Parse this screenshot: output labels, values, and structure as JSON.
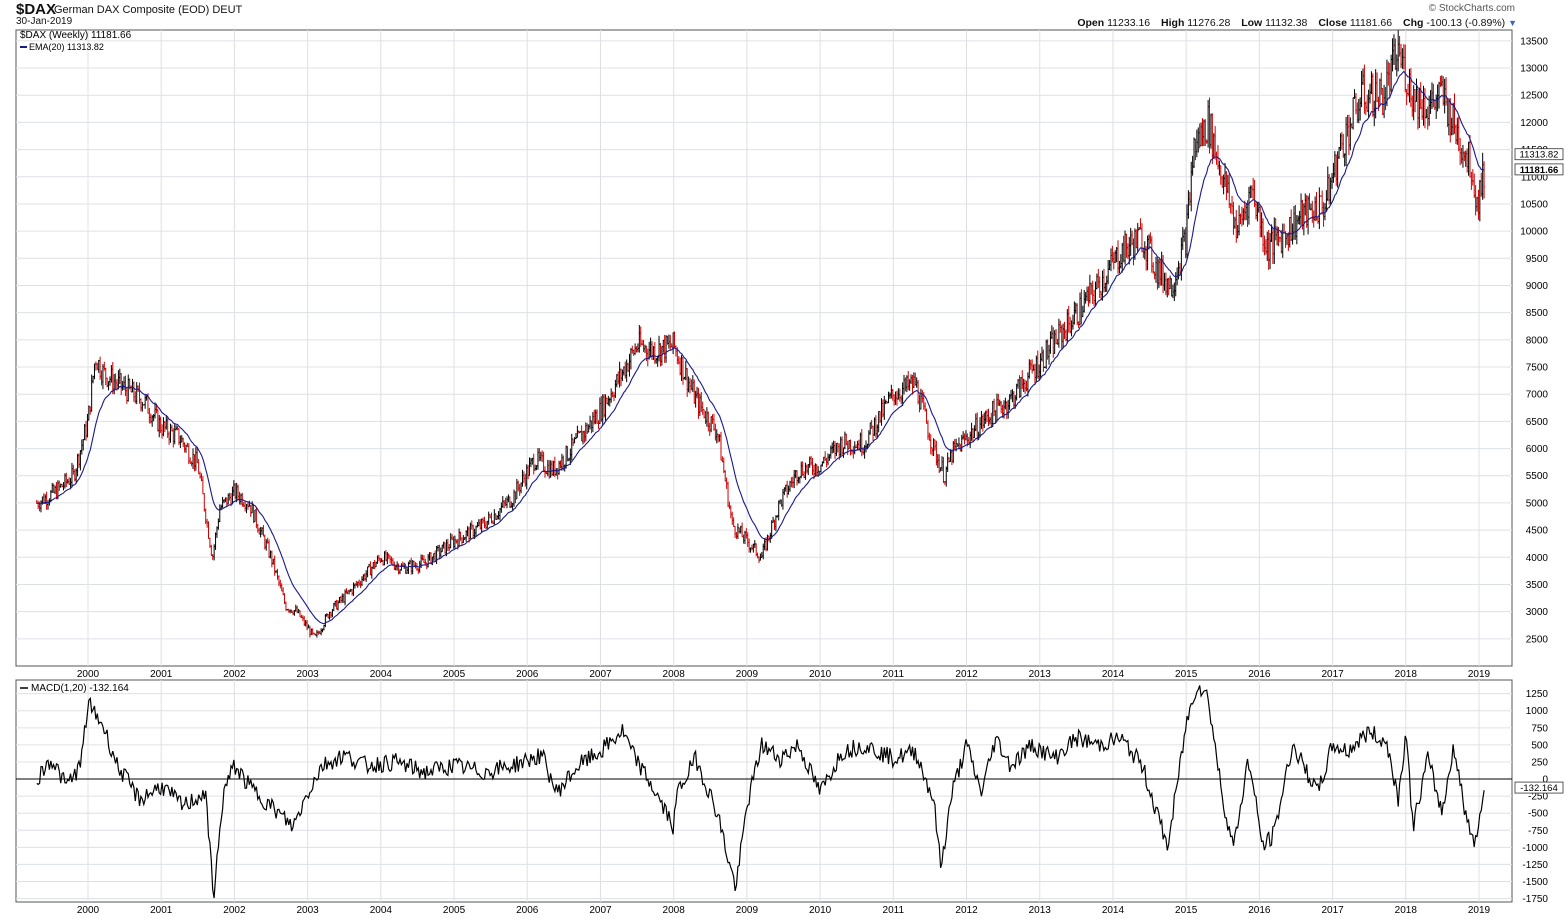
{
  "header": {
    "symbol": "$DAX",
    "description": "German DAX Composite (EOD) DEUT",
    "date": "30-Jan-2019",
    "brand": "© StockCharts.com",
    "open_label": "Open",
    "open": "11233.16",
    "high_label": "High",
    "high": "11276.28",
    "low_label": "Low",
    "low": "11132.38",
    "close_label": "Close",
    "close": "11181.66",
    "chg_label": "Chg",
    "chg": "-100.13 (-0.89%)"
  },
  "legend": {
    "price": "$DAX (Weekly) 11181.66",
    "ema": "EMA(20) 11313.82",
    "macd": "MACD(1,20) -132.164"
  },
  "colors": {
    "up": "#000000",
    "down": "#cc0000",
    "ema": "#1a1a8c",
    "grid": "#dde0e6",
    "zero": "#000000"
  },
  "chart_data": [
    {
      "type": "candlestick",
      "title": "$DAX (Weekly)",
      "series": [
        {
          "name": "$DAX (Weekly)",
          "last": 11181.66
        },
        {
          "name": "EMA(20)",
          "last": 11313.82
        }
      ],
      "x": [
        1999.3,
        1999.55,
        1999.8,
        2000.0,
        2000.1,
        2000.2,
        2000.5,
        2000.75,
        2001.0,
        2001.25,
        2001.5,
        2001.7,
        2001.8,
        2002.0,
        2002.2,
        2002.5,
        2002.7,
        2002.85,
        2003.1,
        2003.3,
        2003.6,
        2004.0,
        2004.3,
        2004.6,
        2005.0,
        2005.4,
        2005.8,
        2006.1,
        2006.35,
        2006.55,
        2007.0,
        2007.3,
        2007.5,
        2007.75,
        2008.0,
        2008.3,
        2008.6,
        2008.8,
        2009.0,
        2009.2,
        2009.45,
        2009.7,
        2010.0,
        2010.3,
        2010.6,
        2011.0,
        2011.3,
        2011.55,
        2011.7,
        2011.8,
        2012.0,
        2012.3,
        2012.6,
        2013.0,
        2013.4,
        2013.8,
        2014.1,
        2014.4,
        2014.6,
        2014.8,
        2015.0,
        2015.1,
        2015.3,
        2015.5,
        2015.7,
        2015.9,
        2016.1,
        2016.3,
        2016.6,
        2016.9,
        2017.1,
        2017.4,
        2017.7,
        2017.9,
        2018.0,
        2018.1,
        2018.3,
        2018.5,
        2018.7,
        2018.9,
        2018.97,
        2019.08
      ],
      "y": [
        5000,
        5200,
        5500,
        6500,
        7700,
        7400,
        7100,
        6900,
        6400,
        6200,
        5700,
        4000,
        4900,
        5200,
        5000,
        4000,
        3100,
        3000,
        2500,
        3000,
        3400,
        4000,
        3800,
        3900,
        4300,
        4600,
        5100,
        5800,
        5600,
        5900,
        6700,
        7400,
        7900,
        7800,
        7900,
        6900,
        6300,
        4600,
        4300,
        4000,
        5000,
        5600,
        5700,
        6100,
        6100,
        7000,
        7200,
        6000,
        5500,
        5900,
        6200,
        6600,
        6900,
        7600,
        8300,
        9000,
        9600,
        9900,
        9300,
        9000,
        9900,
        11500,
        12000,
        11000,
        10000,
        10800,
        9700,
        9900,
        10300,
        10500,
        11500,
        12500,
        12500,
        13300,
        12900,
        12500,
        12300,
        12500,
        11800,
        11200,
        10500,
        11182
      ],
      "ylim": [
        2000,
        13700
      ],
      "yticks": [
        2500,
        3000,
        3500,
        4000,
        4500,
        5000,
        5500,
        6000,
        6500,
        7000,
        7500,
        8000,
        8500,
        9000,
        9500,
        10000,
        10500,
        11000,
        11500,
        12000,
        12500,
        13000,
        13500
      ],
      "xticks": [
        "2000",
        "2001",
        "2002",
        "2003",
        "2004",
        "2005",
        "2006",
        "2007",
        "2008",
        "2009",
        "2010",
        "2011",
        "2012",
        "2013",
        "2014",
        "2015",
        "2016",
        "2017",
        "2018",
        "2019"
      ],
      "price_tags": [
        "11313.82",
        "11181.66"
      ]
    },
    {
      "type": "line",
      "title": "MACD(1,20)",
      "series": [
        {
          "name": "MACD(1,20)",
          "last": -132.164
        }
      ],
      "x": [
        1999.3,
        1999.5,
        1999.7,
        1999.9,
        2000.0,
        2000.2,
        2000.4,
        2000.7,
        2001.0,
        2001.3,
        2001.6,
        2001.72,
        2001.85,
        2002.0,
        2002.2,
        2002.5,
        2002.8,
        2003.0,
        2003.2,
        2003.5,
        2003.8,
        2004.2,
        2004.6,
        2005.0,
        2005.4,
        2005.8,
        2006.2,
        2006.4,
        2006.7,
        2007.0,
        2007.3,
        2007.45,
        2007.7,
        2008.0,
        2008.05,
        2008.3,
        2008.6,
        2008.75,
        2008.85,
        2009.0,
        2009.2,
        2009.45,
        2009.7,
        2010.0,
        2010.3,
        2010.6,
        2011.0,
        2011.3,
        2011.55,
        2011.65,
        2011.8,
        2012.0,
        2012.2,
        2012.4,
        2012.6,
        2012.9,
        2013.2,
        2013.5,
        2013.8,
        2014.1,
        2014.4,
        2014.6,
        2014.75,
        2015.0,
        2015.15,
        2015.3,
        2015.5,
        2015.65,
        2015.85,
        2016.05,
        2016.2,
        2016.45,
        2016.8,
        2017.0,
        2017.2,
        2017.5,
        2017.75,
        2017.9,
        2018.0,
        2018.1,
        2018.3,
        2018.5,
        2018.65,
        2018.85,
        2018.95,
        2019.08
      ],
      "y": [
        0,
        300,
        -100,
        200,
        1100,
        800,
        200,
        -300,
        -100,
        -400,
        -200,
        -1700,
        -200,
        200,
        -100,
        -400,
        -700,
        -200,
        200,
        350,
        200,
        250,
        100,
        200,
        100,
        200,
        350,
        -200,
        200,
        400,
        700,
        350,
        -100,
        -700,
        -200,
        300,
        -500,
        -1200,
        -1600,
        -400,
        500,
        300,
        500,
        -200,
        400,
        500,
        300,
        400,
        -300,
        -1300,
        -200,
        500,
        -200,
        600,
        200,
        500,
        300,
        600,
        500,
        600,
        200,
        -500,
        -1000,
        800,
        1400,
        1200,
        -300,
        -1000,
        300,
        -1000,
        -800,
        500,
        -200,
        500,
        400,
        700,
        500,
        -300,
        700,
        -700,
        300,
        -500,
        500,
        -700,
        -900,
        -132
      ]
    },
    {
      "ylim": [
        -1800,
        1450
      ],
      "yticks": [
        -1750,
        -1500,
        -1250,
        -1000,
        -750,
        -500,
        -250,
        0,
        250,
        500,
        750,
        1000,
        1250
      ],
      "xticks": [
        "2000",
        "2001",
        "2002",
        "2003",
        "2004",
        "2005",
        "2006",
        "2007",
        "2008",
        "2009",
        "2010",
        "2011",
        "2012",
        "2013",
        "2014",
        "2015",
        "2016",
        "2017",
        "2018",
        "2019"
      ],
      "price_tags": [
        "-132.164"
      ]
    }
  ]
}
